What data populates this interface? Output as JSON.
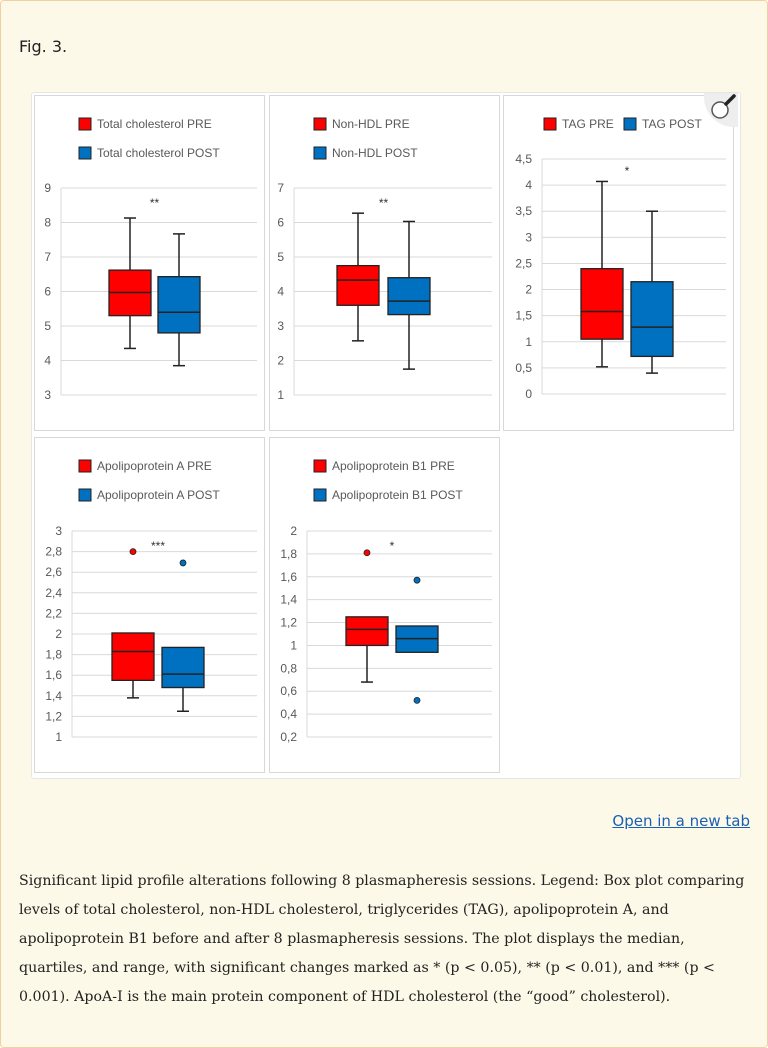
{
  "figure": {
    "label": "Fig. 3.",
    "open_link": "Open in a new tab",
    "caption": "Significant lipid profile alterations following 8 plasmapheresis sessions. Legend: Box plot comparing levels of total cholesterol, non-HDL cholesterol, triglycerides (TAG), apolipoprotein A, and apolipoprotein B1 before and after 8 plasmapheresis sessions. The plot displays the median, quartiles, and range, with significant changes marked as * (p < 0.05), ** (p < 0.01), and *** (p < 0.001). ApoA-I is the main protein component of HDL cholesterol (the “good” cholesterol).",
    "zoom_icon": "magnifier-icon"
  },
  "colors": {
    "pre": "#ff0000",
    "post": "#0070c0",
    "grid": "#d9d9d9",
    "axis_text": "#595959"
  },
  "chart_data": [
    {
      "type": "box",
      "legend": [
        "Total cholesterol PRE",
        "Total cholesterol POST"
      ],
      "legend_layout": "stacked",
      "ylim": [
        3,
        9
      ],
      "yticks": [
        "3",
        "4",
        "5",
        "6",
        "7",
        "8",
        "9"
      ],
      "ytick_values": [
        3,
        4,
        5,
        6,
        7,
        8,
        9
      ],
      "significance": "**",
      "grid": true,
      "series": [
        {
          "name": "Total cholesterol PRE",
          "min": 4.35,
          "q1": 5.3,
          "median": 5.97,
          "q3": 6.62,
          "max": 8.13,
          "outliers": []
        },
        {
          "name": "Total cholesterol POST",
          "min": 3.85,
          "q1": 4.8,
          "median": 5.4,
          "q3": 6.43,
          "max": 7.67,
          "outliers": []
        }
      ]
    },
    {
      "type": "box",
      "legend": [
        "Non-HDL PRE",
        "Non-HDL POST"
      ],
      "legend_layout": "stacked",
      "ylim": [
        1,
        7
      ],
      "yticks": [
        "1",
        "2",
        "3",
        "4",
        "5",
        "6",
        "7"
      ],
      "ytick_values": [
        1,
        2,
        3,
        4,
        5,
        6,
        7
      ],
      "significance": "**",
      "grid": true,
      "series": [
        {
          "name": "Non-HDL PRE",
          "min": 2.57,
          "q1": 3.6,
          "median": 4.33,
          "q3": 4.75,
          "max": 6.27,
          "outliers": []
        },
        {
          "name": "Non-HDL POST",
          "min": 1.75,
          "q1": 3.33,
          "median": 3.72,
          "q3": 4.4,
          "max": 6.03,
          "outliers": []
        }
      ]
    },
    {
      "type": "box",
      "legend": [
        "TAG PRE",
        "TAG POST"
      ],
      "legend_layout": "inline",
      "ylim": [
        0,
        4.5
      ],
      "yticks": [
        "0",
        "0,5",
        "1",
        "1,5",
        "2",
        "2,5",
        "3",
        "3,5",
        "4",
        "4,5"
      ],
      "ytick_values": [
        0,
        0.5,
        1,
        1.5,
        2,
        2.5,
        3,
        3.5,
        4,
        4.5
      ],
      "significance": "*",
      "grid": true,
      "series": [
        {
          "name": "TAG PRE",
          "min": 0.52,
          "q1": 1.05,
          "median": 1.58,
          "q3": 2.4,
          "max": 4.07,
          "outliers": []
        },
        {
          "name": "TAG POST",
          "min": 0.4,
          "q1": 0.72,
          "median": 1.28,
          "q3": 2.15,
          "max": 3.5,
          "outliers": []
        }
      ]
    },
    {
      "type": "box",
      "legend": [
        "Apolipoprotein A PRE",
        "Apolipoprotein A POST"
      ],
      "legend_layout": "stacked",
      "ylim": [
        1,
        3
      ],
      "yticks": [
        "1",
        "1,2",
        "1,4",
        "1,6",
        "1,8",
        "2",
        "2,2",
        "2,4",
        "2,6",
        "2,8",
        "3"
      ],
      "ytick_values": [
        1,
        1.2,
        1.4,
        1.6,
        1.8,
        2,
        2.2,
        2.4,
        2.6,
        2.8,
        3
      ],
      "significance": "***",
      "grid": true,
      "series": [
        {
          "name": "Apolipoprotein A PRE",
          "min": 1.38,
          "q1": 1.55,
          "median": 1.83,
          "q3": 2.01,
          "max": 2.01,
          "outliers": [
            2.8
          ]
        },
        {
          "name": "Apolipoprotein A POST",
          "min": 1.25,
          "q1": 1.48,
          "median": 1.61,
          "q3": 1.87,
          "max": 1.87,
          "outliers": [
            2.69
          ]
        }
      ]
    },
    {
      "type": "box",
      "legend": [
        "Apolipoprotein B1 PRE",
        "Apolipoprotein B1 POST"
      ],
      "legend_layout": "stacked",
      "ylim": [
        0.2,
        2
      ],
      "yticks": [
        "0,2",
        "0,4",
        "0,6",
        "0,8",
        "1",
        "1,2",
        "1,4",
        "1,6",
        "1,8",
        "2"
      ],
      "ytick_values": [
        0.2,
        0.4,
        0.6,
        0.8,
        1,
        1.2,
        1.4,
        1.6,
        1.8,
        2
      ],
      "significance": "*",
      "grid": true,
      "series": [
        {
          "name": "Apolipoprotein B1 PRE",
          "min": 0.68,
          "q1": 1.0,
          "median": 1.14,
          "q3": 1.25,
          "max": 1.25,
          "outliers": [
            1.81
          ]
        },
        {
          "name": "Apolipoprotein B1 POST",
          "min": 0.94,
          "q1": 0.94,
          "median": 1.06,
          "q3": 1.17,
          "max": 1.17,
          "outliers": [
            1.57,
            0.52
          ]
        }
      ]
    }
  ]
}
